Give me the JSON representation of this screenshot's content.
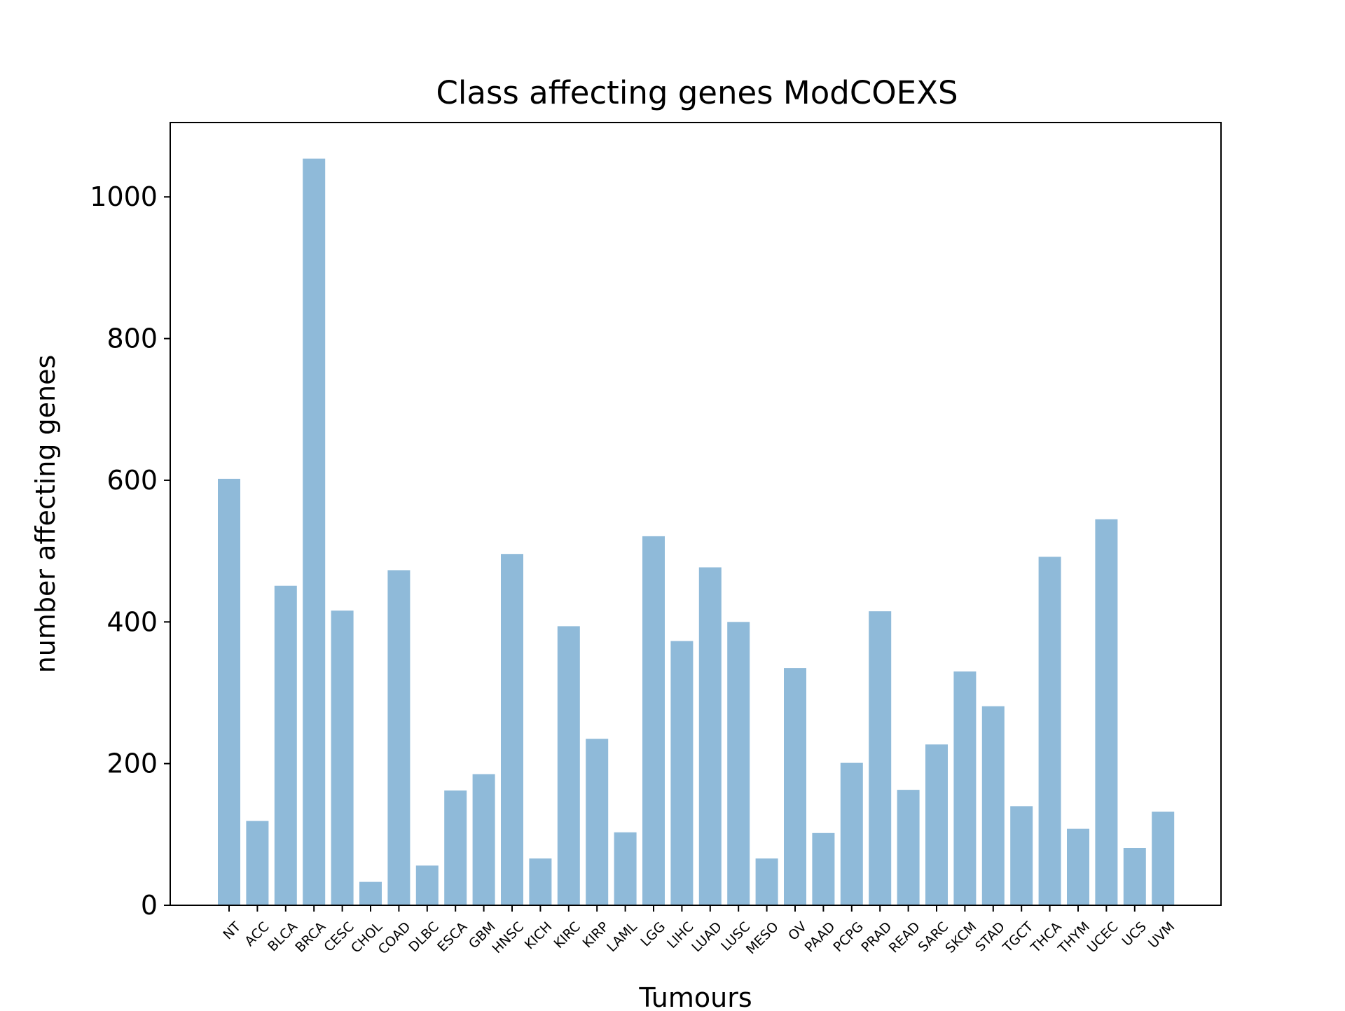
{
  "chart_data": {
    "type": "bar",
    "title": "Class affecting genes ModCOEXS",
    "xlabel": "Tumours",
    "ylabel": "number affecting genes",
    "categories": [
      "NT",
      "ACC",
      "BLCA",
      "BRCA",
      "CESC",
      "CHOL",
      "COAD",
      "DLBC",
      "ESCA",
      "GBM",
      "HNSC",
      "KICH",
      "KIRC",
      "KIRP",
      "LAML",
      "LGG",
      "LIHC",
      "LUAD",
      "LUSC",
      "MESO",
      "OV",
      "PAAD",
      "PCPG",
      "PRAD",
      "READ",
      "SARC",
      "SKCM",
      "STAD",
      "TGCT",
      "THCA",
      "THYM",
      "UCEC",
      "UCS",
      "UVM"
    ],
    "values": [
      602,
      119,
      451,
      1054,
      416,
      33,
      473,
      56,
      162,
      185,
      496,
      66,
      394,
      235,
      103,
      521,
      373,
      477,
      400,
      66,
      335,
      102,
      201,
      415,
      163,
      227,
      330,
      281,
      140,
      492,
      108,
      545,
      81,
      132
    ],
    "ylim": [
      0,
      1105
    ],
    "yticks": [
      0,
      200,
      400,
      600,
      800,
      1000
    ],
    "grid": false,
    "legend": "none",
    "bar_color": "#8fbad9"
  }
}
